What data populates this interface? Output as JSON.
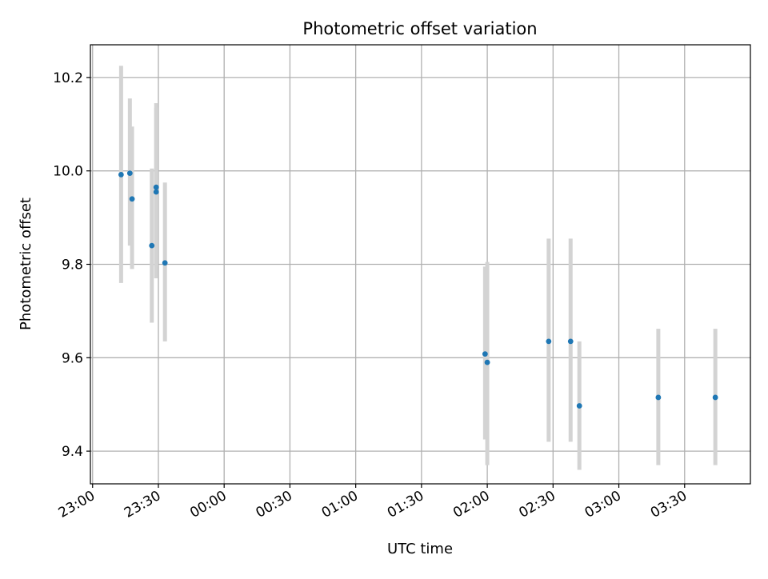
{
  "chart_data": {
    "type": "scatter",
    "title": "Photometric offset variation",
    "xlabel": "UTC time",
    "ylabel": "Photometric offset",
    "x_axis_type": "time",
    "xlim": [
      "22:59",
      "04:00"
    ],
    "ylim": [
      9.33,
      10.27
    ],
    "x_ticks": [
      "23:00",
      "23:30",
      "00:00",
      "00:30",
      "01:00",
      "01:30",
      "02:00",
      "02:30",
      "03:00",
      "03:30"
    ],
    "y_ticks": [
      "9.4",
      "9.6",
      "9.8",
      "10.0",
      "10.2"
    ],
    "grid": true,
    "colors": {
      "marker": "#1f77b4",
      "errorbar": "#d3d3d3",
      "grid": "#b0b0b0"
    },
    "series": [
      {
        "points": [
          {
            "x": "23:13",
            "y": 9.992,
            "ylow": 9.76,
            "yhigh": 10.225
          },
          {
            "x": "23:17",
            "y": 9.995,
            "ylow": 9.84,
            "yhigh": 10.155
          },
          {
            "x": "23:18",
            "y": 9.94,
            "ylow": 9.79,
            "yhigh": 10.095
          },
          {
            "x": "23:27",
            "y": 9.84,
            "ylow": 9.675,
            "yhigh": 10.005
          },
          {
            "x": "23:29",
            "y": 9.965,
            "ylow": 9.795,
            "yhigh": 10.135
          },
          {
            "x": "23:29",
            "y": 9.955,
            "ylow": 9.77,
            "yhigh": 10.145
          },
          {
            "x": "23:33",
            "y": 9.803,
            "ylow": 9.635,
            "yhigh": 9.975
          },
          {
            "x": "01:59",
            "y": 9.608,
            "ylow": 9.425,
            "yhigh": 9.795
          },
          {
            "x": "02:00",
            "y": 9.59,
            "ylow": 9.37,
            "yhigh": 9.805
          },
          {
            "x": "02:28",
            "y": 9.635,
            "ylow": 9.42,
            "yhigh": 9.855
          },
          {
            "x": "02:38",
            "y": 9.635,
            "ylow": 9.42,
            "yhigh": 9.855
          },
          {
            "x": "02:42",
            "y": 9.497,
            "ylow": 9.36,
            "yhigh": 9.635
          },
          {
            "x": "03:18",
            "y": 9.515,
            "ylow": 9.37,
            "yhigh": 9.662
          },
          {
            "x": "03:44",
            "y": 9.515,
            "ylow": 9.37,
            "yhigh": 9.662
          }
        ]
      }
    ]
  }
}
